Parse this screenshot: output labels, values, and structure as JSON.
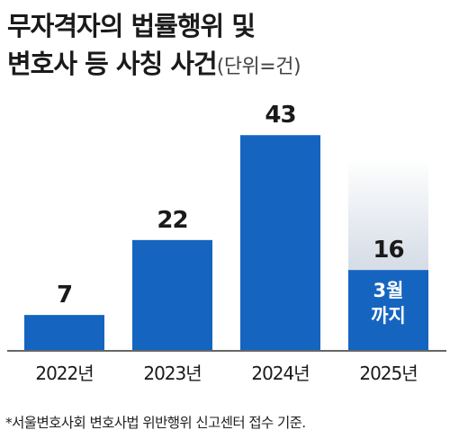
{
  "title": {
    "line1": "무자격자의 법률행위 및",
    "line2": "변호사 등 사칭 사건",
    "unit": "(단위=건)"
  },
  "footnote": "*서울변호사회 변호사법 위반행위 신고센터 접수 기준.",
  "chart_data": {
    "type": "bar",
    "categories": [
      "2022년",
      "2023년",
      "2024년",
      "2025년"
    ],
    "values": [
      7,
      22,
      43,
      16
    ],
    "value_labels": [
      "7",
      "22",
      "43",
      "16"
    ],
    "ylim": [
      0,
      47
    ],
    "partial_note": [
      "3월",
      "까지"
    ],
    "colors": {
      "bar": "#1565c0",
      "partial_fade_top": "#ffffff",
      "partial_fade_bottom": "#b7c3d4",
      "axis": "#333333",
      "value_text": "#1a1a1a",
      "note_text": "#ffffff"
    }
  }
}
